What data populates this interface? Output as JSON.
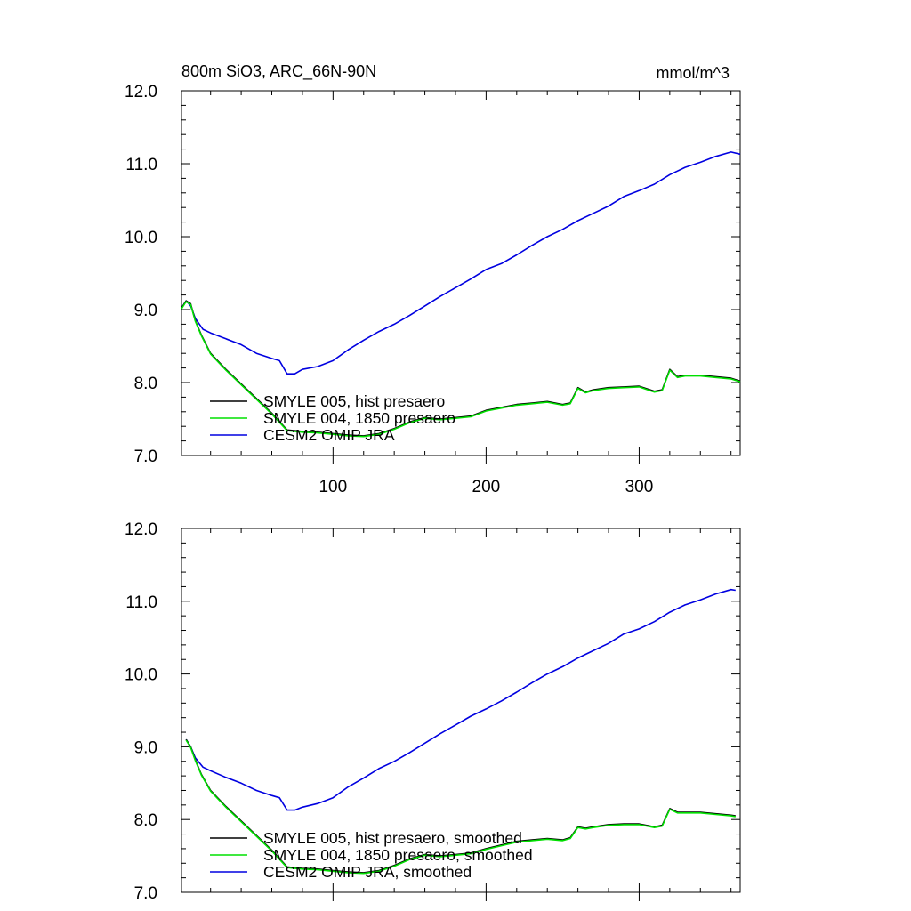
{
  "chart_data": [
    {
      "type": "line",
      "title": "800m SiO3, ARC_66N-90N",
      "units": "mmol/m^3",
      "xlim": [
        1,
        366
      ],
      "ylim": [
        7.0,
        12.0
      ],
      "yticks": [
        "7.0",
        "8.0",
        "9.0",
        "10.0",
        "11.0",
        "12.0"
      ],
      "xticks": [
        "100",
        "200",
        "300"
      ],
      "legend_position": "bottom-left",
      "series": [
        {
          "name": "SMYLE 005, hist presaero",
          "color": "#000000",
          "x": [
            1,
            4,
            7,
            10,
            14,
            20,
            30,
            40,
            50,
            60,
            70,
            80,
            90,
            100,
            110,
            120,
            130,
            140,
            150,
            160,
            170,
            180,
            190,
            200,
            210,
            220,
            230,
            240,
            250,
            255,
            260,
            265,
            270,
            280,
            290,
            300,
            310,
            315,
            320,
            325,
            330,
            340,
            350,
            360,
            366
          ],
          "values": [
            9.02,
            9.12,
            9.08,
            8.85,
            8.65,
            8.4,
            8.18,
            7.98,
            7.78,
            7.58,
            7.35,
            7.33,
            7.32,
            7.3,
            7.28,
            7.27,
            7.3,
            7.37,
            7.46,
            7.52,
            7.5,
            7.52,
            7.54,
            7.62,
            7.66,
            7.7,
            7.72,
            7.74,
            7.7,
            7.72,
            7.93,
            7.87,
            7.9,
            7.93,
            7.94,
            7.95,
            7.88,
            7.9,
            8.18,
            8.08,
            8.1,
            8.1,
            8.08,
            8.06,
            8.02
          ]
        },
        {
          "name": "SMYLE 004, 1850 presaero",
          "color": "#00e000",
          "x": [
            1,
            4,
            7,
            10,
            14,
            20,
            30,
            40,
            50,
            60,
            70,
            80,
            90,
            100,
            110,
            120,
            130,
            140,
            150,
            160,
            170,
            180,
            190,
            200,
            210,
            220,
            230,
            240,
            250,
            255,
            260,
            265,
            270,
            280,
            290,
            300,
            310,
            315,
            320,
            325,
            330,
            340,
            350,
            360,
            366
          ],
          "values": [
            9.01,
            9.11,
            9.07,
            8.84,
            8.64,
            8.39,
            8.17,
            7.97,
            7.77,
            7.57,
            7.34,
            7.32,
            7.31,
            7.29,
            7.27,
            7.26,
            7.29,
            7.36,
            7.45,
            7.51,
            7.49,
            7.51,
            7.53,
            7.61,
            7.65,
            7.69,
            7.71,
            7.73,
            7.69,
            7.71,
            7.92,
            7.86,
            7.89,
            7.92,
            7.93,
            7.94,
            7.87,
            7.89,
            8.17,
            8.07,
            8.09,
            8.09,
            8.07,
            8.05,
            8.01
          ]
        },
        {
          "name": "CESM2 OMIP JRA",
          "color": "#0000e0",
          "x": [
            1,
            4,
            7,
            10,
            15,
            20,
            30,
            40,
            50,
            60,
            65,
            70,
            75,
            80,
            90,
            100,
            110,
            120,
            130,
            140,
            150,
            160,
            170,
            180,
            190,
            200,
            210,
            220,
            230,
            240,
            250,
            260,
            270,
            280,
            290,
            300,
            310,
            320,
            330,
            340,
            350,
            360,
            366
          ],
          "values": [
            9.02,
            9.12,
            9.05,
            8.88,
            8.73,
            8.68,
            8.6,
            8.52,
            8.4,
            8.33,
            8.3,
            8.12,
            8.12,
            8.18,
            8.22,
            8.3,
            8.45,
            8.58,
            8.7,
            8.8,
            8.92,
            9.05,
            9.18,
            9.3,
            9.42,
            9.55,
            9.63,
            9.75,
            9.88,
            10.0,
            10.1,
            10.22,
            10.32,
            10.42,
            10.55,
            10.63,
            10.72,
            10.85,
            10.95,
            11.02,
            11.1,
            11.16,
            11.13
          ]
        }
      ]
    },
    {
      "type": "line",
      "title": "",
      "xlim": [
        1,
        366
      ],
      "ylim": [
        7.0,
        12.0
      ],
      "yticks": [
        "7.0",
        "8.0",
        "9.0",
        "10.0",
        "11.0",
        "12.0"
      ],
      "legend_position": "bottom-left",
      "series": [
        {
          "name": "SMYLE 005, hist presaero, smoothed",
          "color": "#000000",
          "x": [
            4,
            7,
            10,
            14,
            20,
            30,
            40,
            50,
            60,
            70,
            80,
            90,
            100,
            110,
            120,
            130,
            140,
            150,
            160,
            170,
            180,
            190,
            200,
            210,
            220,
            230,
            240,
            250,
            255,
            260,
            265,
            270,
            280,
            290,
            300,
            310,
            315,
            320,
            325,
            330,
            340,
            350,
            360,
            363
          ],
          "values": [
            9.1,
            9.0,
            8.82,
            8.62,
            8.4,
            8.18,
            7.98,
            7.78,
            7.58,
            7.35,
            7.33,
            7.32,
            7.3,
            7.28,
            7.27,
            7.3,
            7.37,
            7.46,
            7.52,
            7.5,
            7.52,
            7.54,
            7.6,
            7.65,
            7.7,
            7.72,
            7.74,
            7.72,
            7.75,
            7.9,
            7.88,
            7.9,
            7.93,
            7.94,
            7.94,
            7.9,
            7.92,
            8.15,
            8.1,
            8.1,
            8.1,
            8.08,
            8.06,
            8.05
          ]
        },
        {
          "name": "SMYLE 004, 1850 presaero, smoothed",
          "color": "#00e000",
          "x": [
            4,
            7,
            10,
            14,
            20,
            30,
            40,
            50,
            60,
            70,
            80,
            90,
            100,
            110,
            120,
            130,
            140,
            150,
            160,
            170,
            180,
            190,
            200,
            210,
            220,
            230,
            240,
            250,
            255,
            260,
            265,
            270,
            280,
            290,
            300,
            310,
            315,
            320,
            325,
            330,
            340,
            350,
            360,
            363
          ],
          "values": [
            9.09,
            8.99,
            8.81,
            8.61,
            8.39,
            8.17,
            7.97,
            7.77,
            7.57,
            7.34,
            7.32,
            7.31,
            7.29,
            7.27,
            7.26,
            7.29,
            7.36,
            7.45,
            7.51,
            7.49,
            7.51,
            7.53,
            7.59,
            7.64,
            7.69,
            7.71,
            7.73,
            7.71,
            7.74,
            7.89,
            7.87,
            7.89,
            7.92,
            7.93,
            7.93,
            7.89,
            7.91,
            8.14,
            8.09,
            8.09,
            8.09,
            8.07,
            8.05,
            8.04
          ]
        },
        {
          "name": "CESM2 OMIP JRA, smoothed",
          "color": "#0000e0",
          "x": [
            4,
            7,
            10,
            15,
            20,
            30,
            40,
            50,
            60,
            65,
            70,
            75,
            80,
            90,
            100,
            110,
            120,
            130,
            140,
            150,
            160,
            170,
            180,
            190,
            200,
            210,
            220,
            230,
            240,
            250,
            260,
            270,
            280,
            290,
            300,
            310,
            320,
            330,
            340,
            350,
            360,
            363
          ],
          "values": [
            9.1,
            9.0,
            8.85,
            8.72,
            8.67,
            8.58,
            8.5,
            8.4,
            8.33,
            8.3,
            8.13,
            8.13,
            8.17,
            8.22,
            8.3,
            8.45,
            8.57,
            8.7,
            8.8,
            8.92,
            9.05,
            9.18,
            9.3,
            9.42,
            9.52,
            9.63,
            9.75,
            9.88,
            10.0,
            10.1,
            10.22,
            10.32,
            10.42,
            10.55,
            10.62,
            10.72,
            10.85,
            10.95,
            11.02,
            11.1,
            11.16,
            11.15
          ]
        }
      ]
    }
  ]
}
